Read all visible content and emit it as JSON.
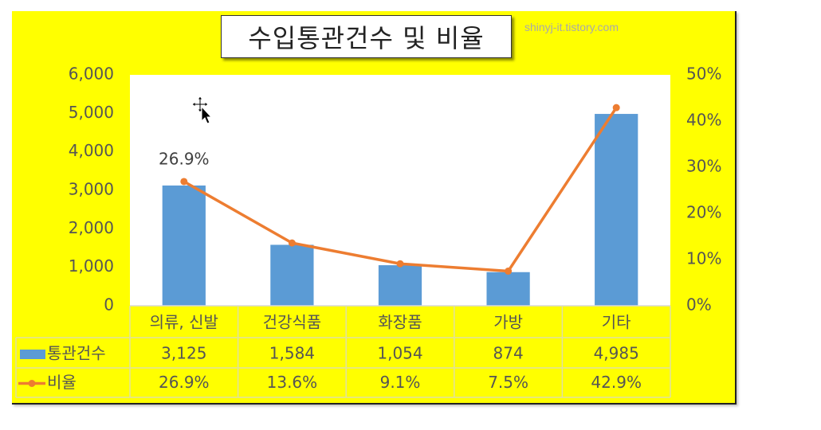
{
  "chart_data": {
    "type": "bar",
    "title": "수입통관건수 및 비율",
    "categories": [
      "의류, 신발",
      "건강식품",
      "화장품",
      "가방",
      "기타"
    ],
    "series": [
      {
        "name": "통관건수",
        "type": "bar",
        "axis": "left",
        "color": "#5b9bd5",
        "values": [
          3125,
          1584,
          1054,
          874,
          4985
        ],
        "value_labels": [
          "3,125",
          "1,584",
          "1,054",
          "874",
          "4,985"
        ]
      },
      {
        "name": "비율",
        "type": "line",
        "axis": "right",
        "color": "#ed7d31",
        "values": [
          26.9,
          13.6,
          9.1,
          7.5,
          42.9
        ],
        "value_labels": [
          "26.9%",
          "13.6%",
          "9.1%",
          "7.5%",
          "42.9%"
        ]
      }
    ],
    "y_left": {
      "min": 0,
      "max": 6000,
      "ticks": [
        "0",
        "1,000",
        "2,000",
        "3,000",
        "4,000",
        "5,000",
        "6,000"
      ]
    },
    "y_right": {
      "min": 0,
      "max": 50,
      "ticks": [
        "0%",
        "10%",
        "20%",
        "30%",
        "40%",
        "50%"
      ]
    },
    "data_labels": [
      {
        "series": 1,
        "index": 0,
        "text": "26.9%"
      }
    ],
    "data_table": true,
    "grid": false
  },
  "watermark": "shinyj-it.tistory.com",
  "colors": {
    "background": "#ffff00",
    "plot_area": "#ffffff",
    "bar": "#5b9bd5",
    "line": "#ed7d31",
    "text": "#555555"
  },
  "cursor_icon": "move-cursor-icon"
}
